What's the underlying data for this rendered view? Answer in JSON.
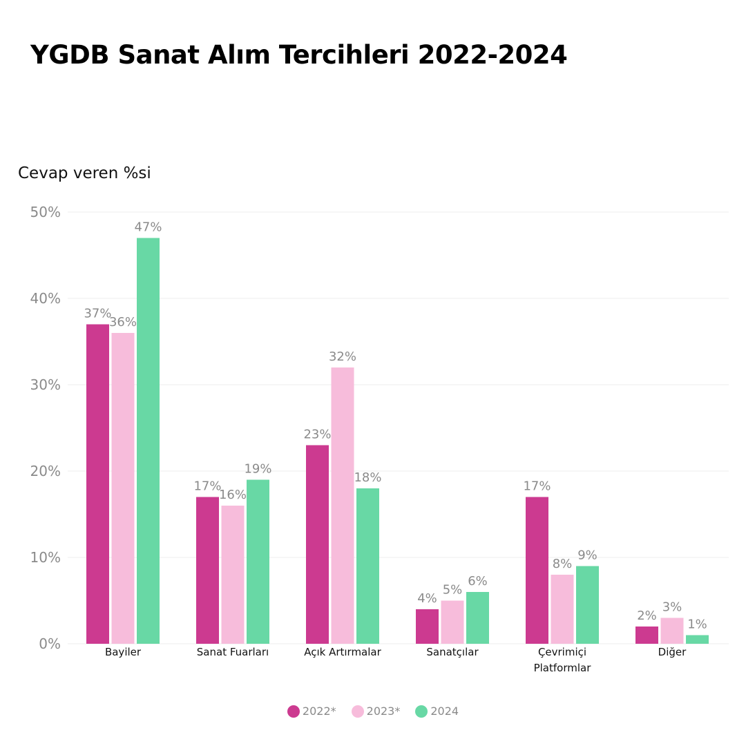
{
  "page": {
    "title": "YGDB Sanat Alım Tercihleri 2022-2024"
  },
  "chart_data": {
    "type": "bar",
    "title": "YGDB Sanat Alım Tercihleri 2022-2024",
    "ylabel": "Cevap veren %si",
    "xlabel": "",
    "ylim": [
      0,
      50
    ],
    "yticks": [
      "0%",
      "10%",
      "20%",
      "30%",
      "40%",
      "50%"
    ],
    "categories": [
      [
        "Bayiler"
      ],
      [
        "Sanat Fuarları"
      ],
      [
        "Açık Artırmalar"
      ],
      [
        "Sanatçılar"
      ],
      [
        "Çevrimiçi",
        "Platformlar"
      ],
      [
        "Diğer"
      ]
    ],
    "series": [
      {
        "name": "2022*",
        "color": "#cc3a90",
        "values": [
          37,
          17,
          23,
          4,
          17,
          2
        ]
      },
      {
        "name": "2023*",
        "color": "#f7bcdb",
        "values": [
          36,
          16,
          32,
          5,
          8,
          3
        ]
      },
      {
        "name": "2024",
        "color": "#68d8a5",
        "values": [
          47,
          19,
          18,
          6,
          9,
          1
        ]
      }
    ],
    "value_labels": [
      [
        "37%",
        "17%",
        "23%",
        "4%",
        "17%",
        "2%"
      ],
      [
        "36%",
        "16%",
        "32%",
        "5%",
        "8%",
        "3%"
      ],
      [
        "47%",
        "19%",
        "18%",
        "6%",
        "9%",
        "1%"
      ]
    ],
    "grid": true,
    "legend_position": "bottom"
  }
}
